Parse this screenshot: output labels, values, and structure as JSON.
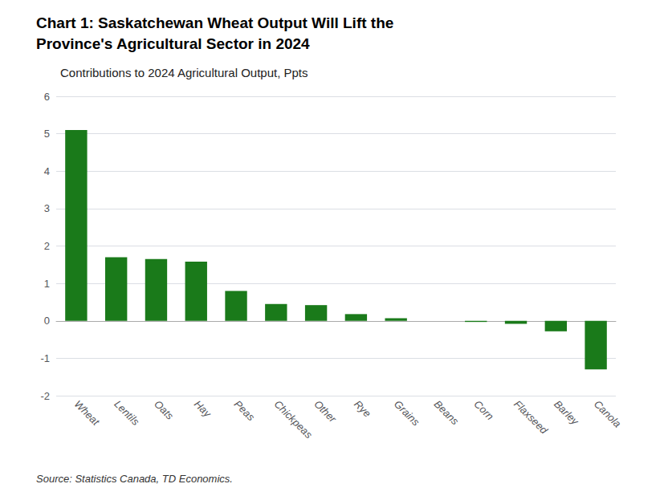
{
  "chart_data": {
    "type": "bar",
    "title": "Chart 1: Saskatchewan Wheat Output Will Lift the\nProvince's Agricultural Sector in 2024",
    "subtitle": "Contributions to 2024 Agricultural Output, Ppts",
    "source": "Source: Statistics Canada, TD Economics.",
    "categories": [
      "Wheat",
      "Lentils",
      "Oats",
      "Hay",
      "Peas",
      "Chickpeas",
      "Other",
      "Rye",
      "Grains",
      "Beans",
      "Corn",
      "Flaxseed",
      "Barley",
      "Canola"
    ],
    "values": [
      5.1,
      1.7,
      1.65,
      1.58,
      0.8,
      0.45,
      0.42,
      0.18,
      0.07,
      0.0,
      -0.03,
      -0.08,
      -0.28,
      -1.3
    ],
    "color": "#1a7a1a",
    "ylim": [
      -2,
      6
    ],
    "yticks": [
      -2,
      -1,
      0,
      1,
      2,
      3,
      4,
      5,
      6
    ],
    "grid": true
  }
}
